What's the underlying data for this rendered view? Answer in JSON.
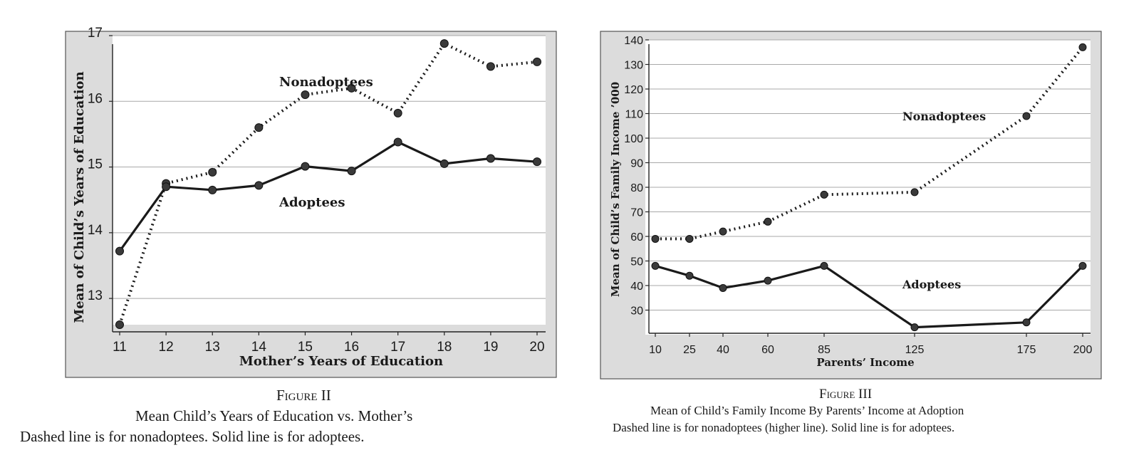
{
  "chart_data": [
    {
      "type": "line",
      "figure_label": "Figure II",
      "caption_title": "Mean Child’s Years of Education vs. Mother’s",
      "caption_note": "Dashed line is for nonadoptees. Solid line is for adoptees.",
      "xlabel": "Mother’s Years of Education",
      "ylabel": "Mean of Child’s Years of Education",
      "x": [
        11,
        12,
        13,
        14,
        15,
        16,
        17,
        18,
        19,
        20
      ],
      "xlim": [
        11,
        20
      ],
      "ylim": [
        12.6,
        17
      ],
      "yticks": [
        13,
        14,
        15,
        16,
        17
      ],
      "xticks": [
        11,
        12,
        13,
        14,
        15,
        16,
        17,
        18,
        19,
        20
      ],
      "grid": true,
      "series": [
        {
          "name": "Nonadoptees",
          "style": "dotted",
          "color": "#1a1a1a",
          "values": [
            12.6,
            14.75,
            14.92,
            15.6,
            16.1,
            16.2,
            15.82,
            16.88,
            16.53,
            16.6
          ]
        },
        {
          "name": "Adoptees",
          "style": "solid",
          "color": "#1a1a1a",
          "values": [
            13.72,
            14.7,
            14.65,
            14.72,
            15.01,
            14.94,
            15.38,
            15.05,
            15.13,
            15.08
          ]
        }
      ]
    },
    {
      "type": "line",
      "figure_label": "Figure III",
      "caption_title": "Mean of Child’s Family Income By Parents’ Income at Adoption",
      "caption_note": "Dashed line is for nonadoptees (higher line). Solid line is for adoptees.",
      "xlabel": "Parents’ Income",
      "ylabel": "Mean of Child’s Family Income ’000",
      "x": [
        10,
        25,
        40,
        60,
        85,
        125,
        175,
        200
      ],
      "xticks": [
        10,
        25,
        40,
        60,
        85,
        125,
        175,
        200
      ],
      "xscale": "categorical-unequal",
      "ylim": [
        20,
        140
      ],
      "yticks": [
        30,
        40,
        50,
        60,
        70,
        80,
        90,
        100,
        110,
        120,
        130,
        140
      ],
      "grid": true,
      "series": [
        {
          "name": "Nonadoptees",
          "style": "dotted",
          "color": "#1a1a1a",
          "values": [
            59,
            59,
            62,
            66,
            77,
            78,
            109,
            137
          ]
        },
        {
          "name": "Adoptees",
          "style": "solid",
          "color": "#1a1a1a",
          "values": [
            48,
            44,
            39,
            42,
            48,
            23,
            25,
            48
          ]
        }
      ]
    }
  ]
}
